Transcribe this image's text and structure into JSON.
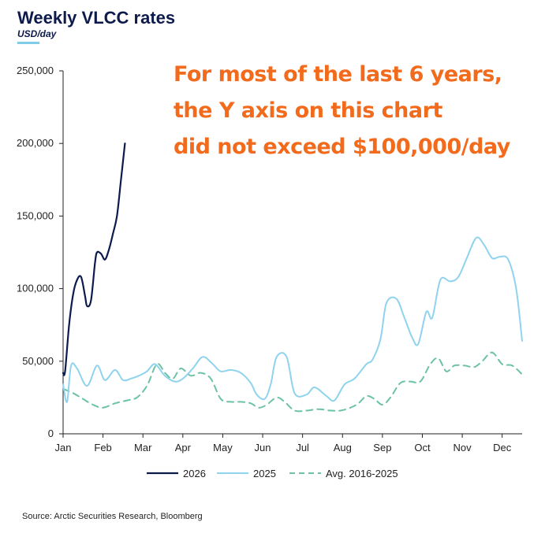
{
  "chart_data": {
    "type": "line",
    "title": "Weekly VLCC rates",
    "subtitle": "USD/day",
    "annotation": [
      "For most of the last 6 years,",
      "the Y axis on this chart",
      "did not exceed $100,000/day"
    ],
    "source": "Source: Arctic Securities Research, Bloomberg",
    "ylim": [
      0,
      250000
    ],
    "y_ticks": [
      0,
      50000,
      100000,
      150000,
      200000,
      250000
    ],
    "y_tick_labels": [
      "0",
      "50,000",
      "100,000",
      "150,000",
      "200,000",
      "250,000"
    ],
    "x_ticks": [
      0,
      1,
      2,
      3,
      4,
      5,
      6,
      7,
      8,
      9,
      10,
      11
    ],
    "x_tick_labels": [
      "Jan",
      "Feb",
      "Mar",
      "Apr",
      "May",
      "Jun",
      "Jul",
      "Aug",
      "Sep",
      "Oct",
      "Nov",
      "Dec"
    ],
    "xlim": [
      0,
      11.5
    ],
    "grid": false,
    "legend_position": "bottom",
    "colors": {
      "title": "#0d1b4c",
      "annotation": "#f26a1b"
    },
    "series": [
      {
        "name": "2026",
        "color": "#0d1b4c",
        "dash": "solid",
        "width": 2.2,
        "x": [
          0.0,
          0.05,
          0.15,
          0.25,
          0.35,
          0.45,
          0.55,
          0.6,
          0.7,
          0.8,
          0.85,
          0.95,
          1.05,
          1.15,
          1.25,
          1.35,
          1.45,
          1.55
        ],
        "values": [
          42000,
          43000,
          75000,
          96000,
          106000,
          108000,
          95000,
          88000,
          92000,
          118000,
          125000,
          124000,
          120000,
          127000,
          138000,
          150000,
          175000,
          200000
        ]
      },
      {
        "name": "2025",
        "color": "#8fd3ee",
        "dash": "solid",
        "width": 2,
        "x": [
          0.0,
          0.1,
          0.2,
          0.35,
          0.6,
          0.85,
          1.05,
          1.3,
          1.5,
          1.7,
          1.9,
          2.1,
          2.3,
          2.55,
          2.8,
          3.0,
          3.25,
          3.5,
          3.75,
          3.95,
          4.2,
          4.45,
          4.7,
          4.85,
          5.05,
          5.2,
          5.35,
          5.6,
          5.8,
          6.1,
          6.3,
          6.6,
          6.8,
          7.05,
          7.3,
          7.6,
          7.75,
          7.95,
          8.1,
          8.35,
          8.55,
          8.75,
          8.9,
          9.1,
          9.25,
          9.45,
          9.7,
          9.9,
          10.1,
          10.35,
          10.55,
          10.75,
          10.95,
          11.15,
          11.35,
          11.5
        ],
        "values": [
          34000,
          22000,
          47000,
          45000,
          33000,
          47000,
          37000,
          44000,
          37000,
          38000,
          40000,
          43000,
          48000,
          40000,
          36000,
          38000,
          45000,
          53000,
          48000,
          43000,
          44000,
          42000,
          35000,
          27000,
          24000,
          34000,
          53000,
          53000,
          28000,
          27000,
          32000,
          26000,
          23000,
          34000,
          38000,
          48000,
          51000,
          65000,
          90000,
          93000,
          80000,
          66000,
          62000,
          84000,
          80000,
          106000,
          105000,
          108000,
          120000,
          135000,
          130000,
          121000,
          122000,
          120000,
          100000,
          64000
        ]
      },
      {
        "name": "Avg. 2016-2025",
        "color": "#6cc2a4",
        "dash": "dashed",
        "width": 2,
        "x": [
          0.0,
          0.25,
          0.5,
          0.75,
          1.0,
          1.3,
          1.6,
          1.85,
          2.1,
          2.35,
          2.55,
          2.75,
          2.95,
          3.2,
          3.45,
          3.7,
          3.95,
          4.2,
          4.45,
          4.7,
          4.9,
          5.1,
          5.35,
          5.55,
          5.8,
          6.1,
          6.4,
          6.7,
          6.95,
          7.2,
          7.4,
          7.6,
          7.8,
          8.0,
          8.2,
          8.45,
          8.7,
          8.95,
          9.2,
          9.4,
          9.6,
          9.8,
          10.05,
          10.3,
          10.5,
          10.75,
          11.0,
          11.25,
          11.5
        ],
        "values": [
          31000,
          28000,
          24000,
          20000,
          18000,
          21000,
          23000,
          25000,
          33000,
          48000,
          42000,
          38000,
          45000,
          40000,
          42000,
          38000,
          24000,
          22000,
          22000,
          21000,
          18000,
          20000,
          25000,
          22000,
          16000,
          16000,
          17000,
          16000,
          16000,
          18000,
          21000,
          26000,
          24000,
          20000,
          25000,
          35000,
          36000,
          36000,
          48000,
          52000,
          43000,
          47000,
          47000,
          46000,
          50000,
          56000,
          48000,
          47000,
          41000
        ]
      }
    ]
  }
}
